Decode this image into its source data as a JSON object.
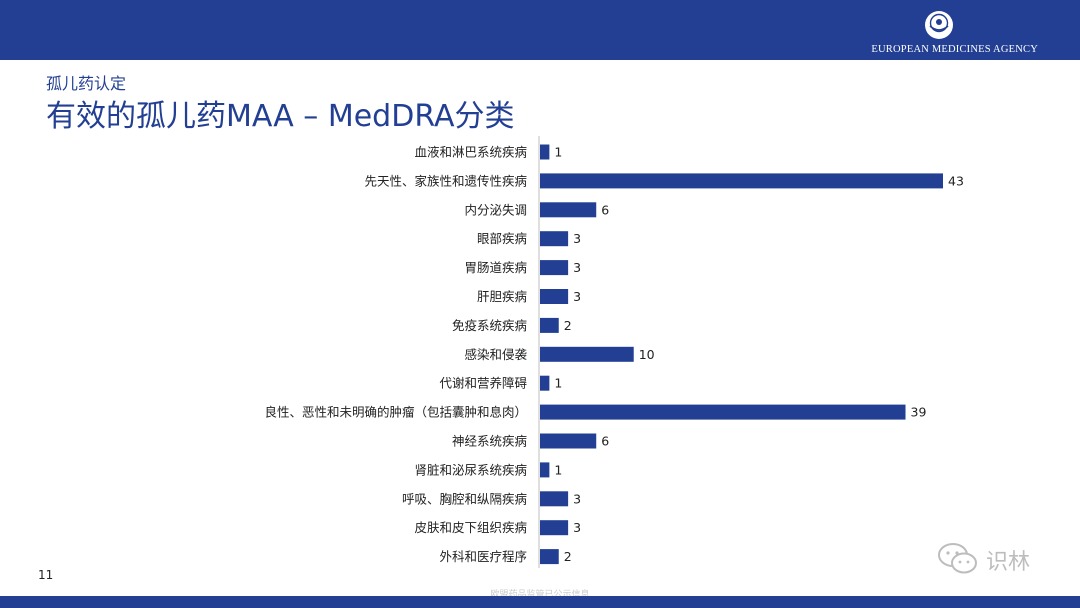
{
  "header": {
    "agency_name": "EUROPEAN MEDICINES AGENCY",
    "logo_icon": "ema-logo-icon"
  },
  "slide": {
    "subtitle": "孤儿药认定",
    "title": "有效的孤儿药MAA – MedDRA分类",
    "page_number": "11",
    "footer_note": "欧盟药品监管已公示信息"
  },
  "watermark": {
    "icon": "wechat-icon",
    "text": "识林"
  },
  "colors": {
    "brand": "#233f93",
    "bar": "#233f93",
    "text": "#222222"
  },
  "chart_data": {
    "type": "bar",
    "orientation": "horizontal",
    "title": "",
    "xlabel": "",
    "ylabel": "",
    "xlim": [
      0,
      43
    ],
    "grid": false,
    "legend": "none",
    "categories": [
      "血液和淋巴系统疾病",
      "先天性、家族性和遗传性疾病",
      "内分泌失调",
      "眼部疾病",
      "胃肠道疾病",
      "肝胆疾病",
      "免疫系统疾病",
      "感染和侵袭",
      "代谢和营养障碍",
      "良性、恶性和未明确的肿瘤（包括囊肿和息肉）",
      "神经系统疾病",
      "肾脏和泌尿系统疾病",
      "呼吸、胸腔和纵隔疾病",
      "皮肤和皮下组织疾病",
      "外科和医疗程序"
    ],
    "values": [
      1,
      43,
      6,
      3,
      3,
      3,
      2,
      10,
      1,
      39,
      6,
      1,
      3,
      3,
      2
    ],
    "data_labels": [
      "1",
      "43",
      "6",
      "3",
      "3",
      "3",
      "2",
      "10",
      "1",
      "39",
      "6",
      "1",
      "3",
      "3",
      "2"
    ]
  }
}
